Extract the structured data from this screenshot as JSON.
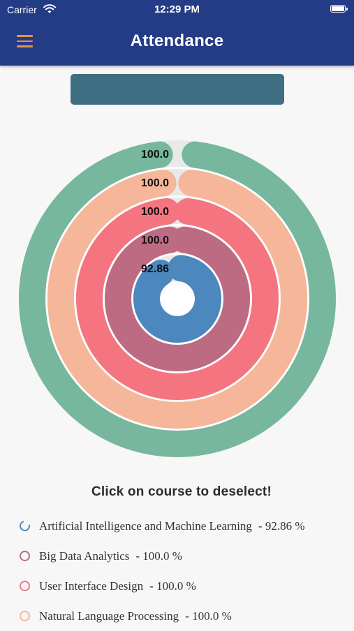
{
  "status_bar": {
    "carrier": "Carrier",
    "time": "12:29 PM"
  },
  "header": {
    "title": "Attendance"
  },
  "chart_data": {
    "type": "radial-bar",
    "max": 100,
    "series": [
      {
        "name": "Natural Language Processing",
        "value": 100.0,
        "label": "100.0",
        "color": "#76b79e"
      },
      {
        "name": "Natural Language Processing",
        "value": 100.0,
        "label": "100.0",
        "color": "#f5b699"
      },
      {
        "name": "User Interface Design",
        "value": 100.0,
        "label": "100.0",
        "color": "#f47580"
      },
      {
        "name": "Big Data Analytics",
        "value": 100.0,
        "label": "100.0",
        "color": "#bd6b82"
      },
      {
        "name": "Artificial Intelligence and Machine Learning",
        "value": 92.86,
        "label": "92.86",
        "color": "#4c87be"
      }
    ]
  },
  "hint": "Click on course to deselect!",
  "legend": [
    {
      "name": "Artificial Intelligence and Machine Learning",
      "value_text": "- 92.86 %",
      "color": "#4c87be",
      "partial": true
    },
    {
      "name": "Big Data Analytics",
      "value_text": "- 100.0 %",
      "color": "#bd6b82",
      "partial": false
    },
    {
      "name": "User Interface Design",
      "value_text": "- 100.0 %",
      "color": "#f47580",
      "partial": false
    },
    {
      "name": "Natural Language Processing",
      "value_text": "- 100.0 %",
      "color": "#f5b699",
      "partial": false
    }
  ]
}
